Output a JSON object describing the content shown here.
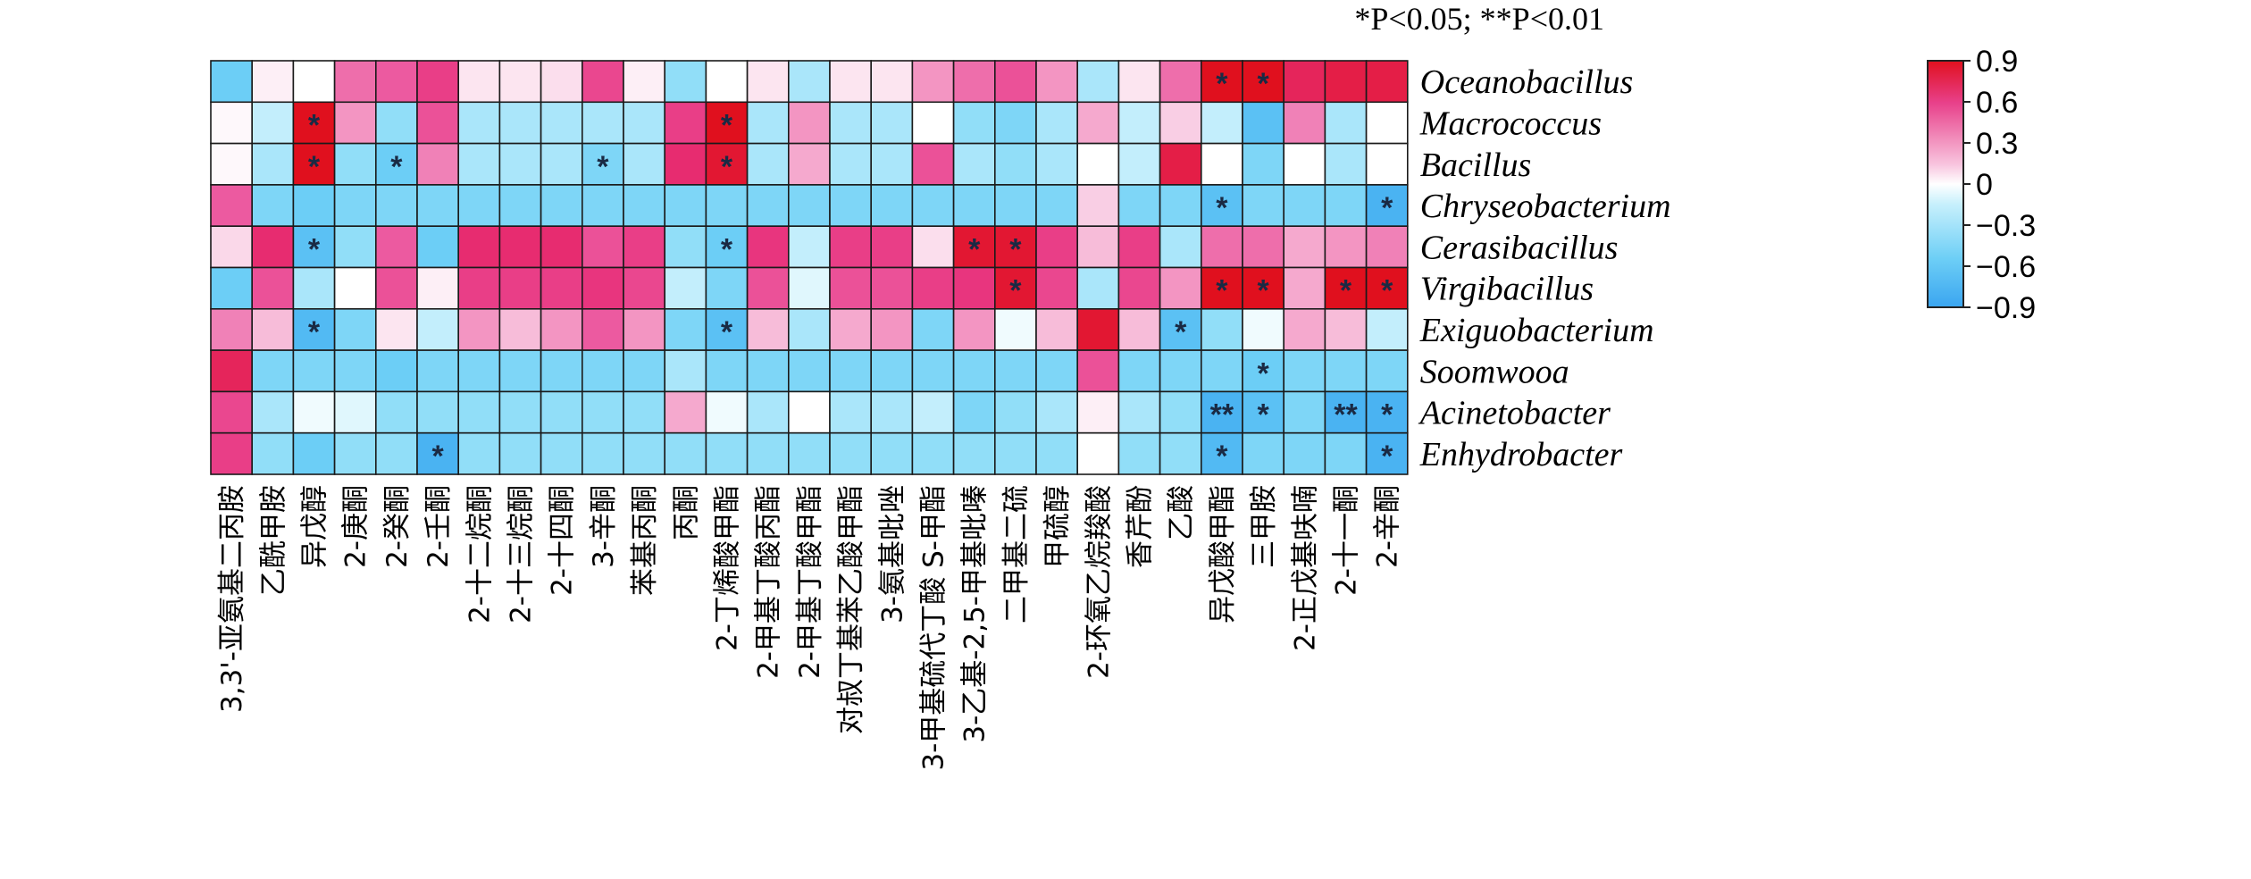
{
  "chart_data": {
    "type": "heatmap",
    "title": "",
    "significance_note": "*P<0.05; **P<0.01",
    "rows": [
      "Oceanobacillus",
      "Macrococcus",
      "Bacillus",
      "Chryseobacterium",
      "Cerasibacillus",
      "Virgibacillus",
      "Exiguobacterium",
      "Soomwooa",
      "Acinetobacter",
      "Enhydrobacter"
    ],
    "columns": [
      "3,3'-亚氨基二丙胺",
      "乙酰甲胺",
      "异戊醇",
      "2-庚酮",
      "2-癸酮",
      "2-壬酮",
      "2-十二烷酮",
      "2-十三烷酮",
      "2-十四酮",
      "3-辛酮",
      "苯基丙酮",
      "丙酮",
      "2-丁烯酸甲酯",
      "2-甲基丁酸丙酯",
      "2-甲基丁酸甲酯",
      "对叔丁基苯乙酸甲酯",
      "3-氨基吡唑",
      "3-甲基硫代丁酸 S-甲酯",
      "3-乙基-2,5-甲基吡嗪",
      "二甲基二硫",
      "甲硫醇",
      "2-环氧乙烷羧酸",
      "香芹酚",
      "乙酸",
      "异戊酸甲酯",
      "三甲胺",
      "2-正戊基呋喃",
      "2-十一酮",
      "2-辛酮"
    ],
    "values": [
      [
        -0.6,
        0.05,
        0.0,
        0.4,
        0.45,
        0.6,
        0.08,
        0.08,
        0.1,
        0.55,
        0.05,
        -0.4,
        0.0,
        0.08,
        -0.3,
        0.08,
        0.08,
        0.3,
        0.4,
        0.5,
        0.3,
        -0.3,
        0.08,
        0.4,
        0.9,
        0.9,
        0.75,
        0.8,
        0.8
      ],
      [
        0.02,
        -0.2,
        0.9,
        0.3,
        -0.4,
        0.5,
        -0.3,
        -0.3,
        -0.3,
        -0.3,
        -0.3,
        0.6,
        0.9,
        -0.3,
        0.3,
        -0.3,
        -0.3,
        0.0,
        -0.4,
        -0.5,
        -0.3,
        0.25,
        -0.2,
        0.15,
        -0.2,
        -0.7,
        0.35,
        -0.3,
        0.0
      ],
      [
        0.02,
        -0.3,
        0.9,
        -0.4,
        -0.6,
        0.35,
        -0.3,
        -0.3,
        -0.3,
        -0.5,
        -0.3,
        0.7,
        0.85,
        -0.3,
        0.25,
        -0.3,
        -0.3,
        0.5,
        -0.3,
        -0.4,
        -0.3,
        0.0,
        -0.2,
        0.8,
        0.0,
        -0.5,
        0.0,
        -0.3,
        0.0
      ],
      [
        0.45,
        -0.5,
        -0.6,
        -0.5,
        -0.5,
        -0.5,
        -0.5,
        -0.5,
        -0.5,
        -0.5,
        -0.5,
        -0.5,
        -0.5,
        -0.5,
        -0.5,
        -0.5,
        -0.5,
        -0.5,
        -0.5,
        -0.5,
        -0.5,
        0.15,
        -0.5,
        -0.5,
        -0.7,
        -0.5,
        -0.5,
        -0.5,
        -0.8
      ],
      [
        0.12,
        0.7,
        -0.7,
        -0.4,
        0.45,
        -0.6,
        0.7,
        0.7,
        0.7,
        0.5,
        0.6,
        -0.4,
        -0.6,
        0.65,
        -0.2,
        0.6,
        0.6,
        0.1,
        0.85,
        0.85,
        0.6,
        0.2,
        0.6,
        -0.3,
        0.4,
        0.4,
        0.25,
        0.3,
        0.35
      ],
      [
        -0.6,
        0.5,
        -0.3,
        0.0,
        0.5,
        0.05,
        0.6,
        0.6,
        0.6,
        0.65,
        0.55,
        -0.2,
        -0.5,
        0.5,
        -0.1,
        0.5,
        0.5,
        0.6,
        0.65,
        0.85,
        0.55,
        -0.3,
        0.55,
        0.3,
        0.9,
        0.9,
        0.25,
        0.9,
        0.9
      ],
      [
        0.35,
        0.2,
        -0.75,
        -0.5,
        0.08,
        -0.2,
        0.3,
        0.2,
        0.3,
        0.45,
        0.3,
        -0.5,
        -0.7,
        0.2,
        -0.3,
        0.25,
        0.3,
        -0.5,
        0.3,
        -0.05,
        0.2,
        0.85,
        0.2,
        -0.7,
        -0.4,
        -0.05,
        0.25,
        0.2,
        -0.2
      ],
      [
        0.75,
        -0.5,
        -0.5,
        -0.5,
        -0.6,
        -0.5,
        -0.5,
        -0.5,
        -0.5,
        -0.5,
        -0.5,
        -0.3,
        -0.5,
        -0.5,
        -0.5,
        -0.5,
        -0.5,
        -0.5,
        -0.5,
        -0.5,
        -0.5,
        0.5,
        -0.5,
        -0.5,
        -0.5,
        -0.6,
        -0.5,
        -0.5,
        -0.5
      ],
      [
        0.55,
        -0.3,
        -0.05,
        -0.1,
        -0.4,
        -0.4,
        -0.4,
        -0.4,
        -0.4,
        -0.4,
        -0.4,
        0.25,
        -0.05,
        -0.3,
        0.0,
        -0.3,
        -0.3,
        -0.2,
        -0.5,
        -0.4,
        -0.3,
        0.05,
        -0.3,
        -0.4,
        -0.8,
        -0.7,
        -0.5,
        -0.8,
        -0.8
      ],
      [
        0.6,
        -0.4,
        -0.6,
        -0.4,
        -0.4,
        -0.8,
        -0.4,
        -0.4,
        -0.4,
        -0.4,
        -0.4,
        -0.4,
        -0.4,
        -0.4,
        -0.4,
        -0.4,
        -0.4,
        -0.4,
        -0.4,
        -0.4,
        -0.4,
        0.0,
        -0.4,
        -0.4,
        -0.75,
        -0.5,
        -0.5,
        -0.5,
        -0.8
      ]
    ],
    "significance": [
      [
        "",
        "",
        "",
        "",
        "",
        "",
        "",
        "",
        "",
        "",
        "",
        "",
        "",
        "",
        "",
        "",
        "",
        "",
        "",
        "",
        "",
        "",
        "",
        "",
        "*",
        "*",
        "",
        "",
        ""
      ],
      [
        "",
        "",
        "*",
        "",
        "",
        "",
        "",
        "",
        "",
        "",
        "",
        "",
        "*",
        "",
        "",
        "",
        "",
        "",
        "",
        "",
        "",
        "",
        "",
        "",
        "",
        "",
        "",
        "",
        ""
      ],
      [
        "",
        "",
        "*",
        "",
        "*",
        "",
        "",
        "",
        "",
        "*",
        "",
        "",
        "*",
        "",
        "",
        "",
        "",
        "",
        "",
        "",
        "",
        "",
        "",
        "",
        "",
        "",
        "",
        "",
        ""
      ],
      [
        "",
        "",
        "",
        "",
        "",
        "",
        "",
        "",
        "",
        "",
        "",
        "",
        "",
        "",
        "",
        "",
        "",
        "",
        "",
        "",
        "",
        "",
        "",
        "",
        "*",
        "",
        "",
        "",
        "*"
      ],
      [
        "",
        "",
        "*",
        "",
        "",
        "",
        "",
        "",
        "",
        "",
        "",
        "",
        "*",
        "",
        "",
        "",
        "",
        "",
        "*",
        "*",
        "",
        "",
        "",
        "",
        "",
        "",
        "",
        "",
        ""
      ],
      [
        "",
        "",
        "",
        "",
        "",
        "",
        "",
        "",
        "",
        "",
        "",
        "",
        "",
        "",
        "",
        "",
        "",
        "",
        "",
        "*",
        "",
        "",
        "",
        "",
        "*",
        "*",
        "",
        "*",
        "*"
      ],
      [
        "",
        "",
        "*",
        "",
        "",
        "",
        "",
        "",
        "",
        "",
        "",
        "",
        "*",
        "",
        "",
        "",
        "",
        "",
        "",
        "",
        "",
        "",
        "",
        "*",
        "",
        "",
        "",
        "",
        ""
      ],
      [
        "",
        "",
        "",
        "",
        "",
        "",
        "",
        "",
        "",
        "",
        "",
        "",
        "",
        "",
        "",
        "",
        "",
        "",
        "",
        "",
        "",
        "",
        "",
        "",
        "",
        "*",
        "",
        "",
        ""
      ],
      [
        "",
        "",
        "",
        "",
        "",
        "",
        "",
        "",
        "",
        "",
        "",
        "",
        "",
        "",
        "",
        "",
        "",
        "",
        "",
        "",
        "",
        "",
        "",
        "",
        "**",
        "*",
        "",
        "**",
        "*"
      ],
      [
        "",
        "",
        "",
        "",
        "",
        "*",
        "",
        "",
        "",
        "",
        "",
        "",
        "",
        "",
        "",
        "",
        "",
        "",
        "",
        "",
        "",
        "",
        "",
        "",
        "*",
        "",
        "",
        "",
        "*"
      ]
    ],
    "color_scale": {
      "min": -0.9,
      "max": 0.9,
      "ticks": [
        0.9,
        0.6,
        0.3,
        0,
        -0.3,
        -0.6,
        -0.9
      ],
      "tick_labels": [
        "0.9",
        "0.6",
        "0.3",
        "0",
        "−0.3",
        "−0.6",
        "−0.9"
      ],
      "colors": {
        "low": "#3aa5f0",
        "mid": "#ffffff",
        "high": "#e0101e"
      }
    }
  }
}
